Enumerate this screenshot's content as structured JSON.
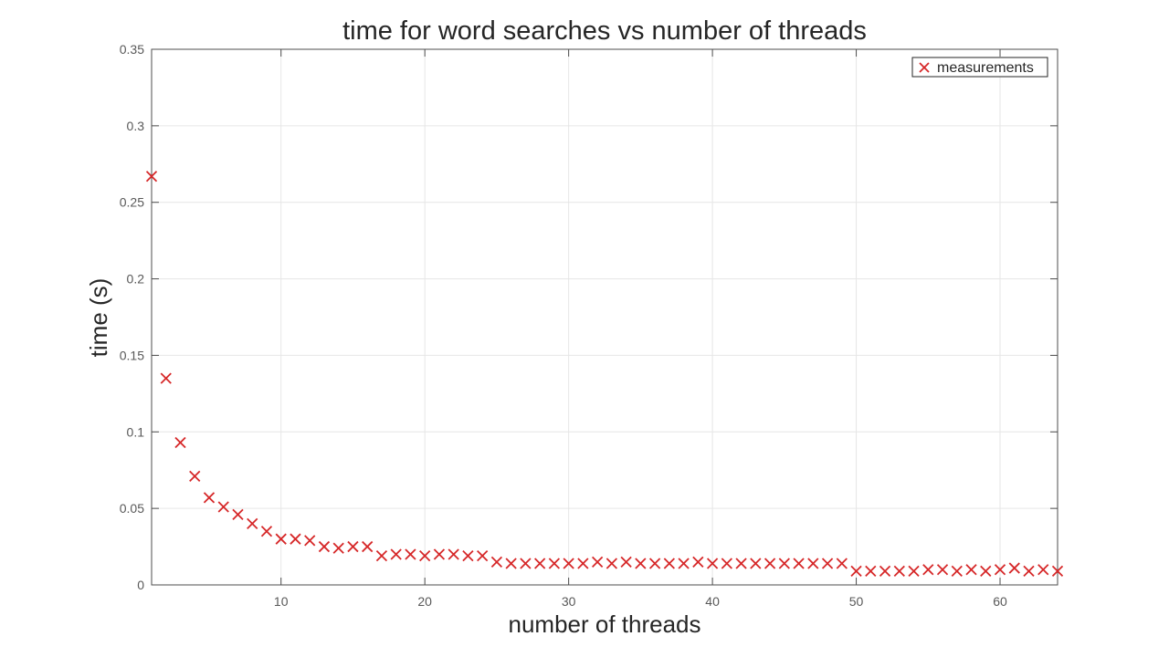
{
  "chart_data": {
    "type": "scatter",
    "title": "time for word searches vs number of threads",
    "xlabel": "number of threads",
    "ylabel": "time (s)",
    "xlim": [
      1,
      64
    ],
    "ylim": [
      0,
      0.35
    ],
    "xticks": [
      10,
      20,
      30,
      40,
      50,
      60
    ],
    "yticks": [
      0,
      0.05,
      0.1,
      0.15,
      0.2,
      0.25,
      0.3,
      0.35
    ],
    "grid": true,
    "legend_position": "top-right",
    "marker": "x",
    "series": [
      {
        "name": "measurements",
        "color": "#d62728",
        "x": [
          1,
          2,
          3,
          4,
          5,
          6,
          7,
          8,
          9,
          10,
          11,
          12,
          13,
          14,
          15,
          16,
          17,
          18,
          19,
          20,
          21,
          22,
          23,
          24,
          25,
          26,
          27,
          28,
          29,
          30,
          31,
          32,
          33,
          34,
          35,
          36,
          37,
          38,
          39,
          40,
          41,
          42,
          43,
          44,
          45,
          46,
          47,
          48,
          49,
          50,
          51,
          52,
          53,
          54,
          55,
          56,
          57,
          58,
          59,
          60,
          61,
          62,
          63,
          64
        ],
        "y": [
          0.267,
          0.135,
          0.093,
          0.071,
          0.057,
          0.051,
          0.046,
          0.04,
          0.035,
          0.03,
          0.03,
          0.029,
          0.025,
          0.024,
          0.025,
          0.025,
          0.019,
          0.02,
          0.02,
          0.019,
          0.02,
          0.02,
          0.019,
          0.019,
          0.015,
          0.014,
          0.014,
          0.014,
          0.014,
          0.014,
          0.014,
          0.015,
          0.014,
          0.015,
          0.014,
          0.014,
          0.014,
          0.014,
          0.015,
          0.014,
          0.014,
          0.014,
          0.014,
          0.014,
          0.014,
          0.014,
          0.014,
          0.014,
          0.014,
          0.009,
          0.009,
          0.009,
          0.009,
          0.009,
          0.01,
          0.01,
          0.009,
          0.01,
          0.009,
          0.01,
          0.011,
          0.009,
          0.01,
          0.009
        ]
      }
    ]
  }
}
